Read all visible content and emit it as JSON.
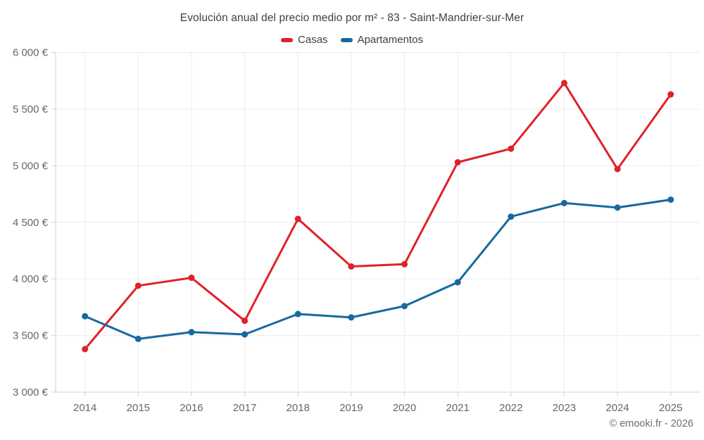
{
  "header": {
    "title": "Evolución anual del precio medio por m² - 83 - Saint-Mandrier-sur-Mer"
  },
  "footer": {
    "credit": "© emooki.fr - 2026"
  },
  "colors": {
    "casas": "#e02128",
    "apartamentos": "#1669a0",
    "grid": "#ececec",
    "axis": "#d0d0d0",
    "tick_text": "#666666"
  },
  "chart_data": {
    "type": "line",
    "title": "Evolución anual del precio medio por m² - 83 - Saint-Mandrier-sur-Mer",
    "categories": [
      "2014",
      "2015",
      "2016",
      "2017",
      "2018",
      "2019",
      "2020",
      "2021",
      "2022",
      "2023",
      "2024",
      "2025"
    ],
    "series": [
      {
        "name": "Casas",
        "color": "#e02128",
        "values": [
          3380,
          3940,
          4010,
          3630,
          4530,
          4110,
          4130,
          5030,
          5150,
          5730,
          4970,
          5630
        ]
      },
      {
        "name": "Apartamentos",
        "color": "#1669a0",
        "values": [
          3670,
          3470,
          3530,
          3510,
          3690,
          3660,
          3760,
          3970,
          4550,
          4670,
          4630,
          4700
        ]
      }
    ],
    "y_axis": {
      "min": 3000,
      "max": 6000,
      "tick_interval": 500,
      "tick_labels": [
        "3 000 €",
        "3 500 €",
        "4 000 €",
        "4 500 €",
        "5 000 €",
        "5 500 €",
        "6 000 €"
      ]
    },
    "x_axis": {
      "label_font_size": 15
    },
    "legend_position": "top",
    "grid": true,
    "ylim": [
      3000,
      6000
    ]
  }
}
